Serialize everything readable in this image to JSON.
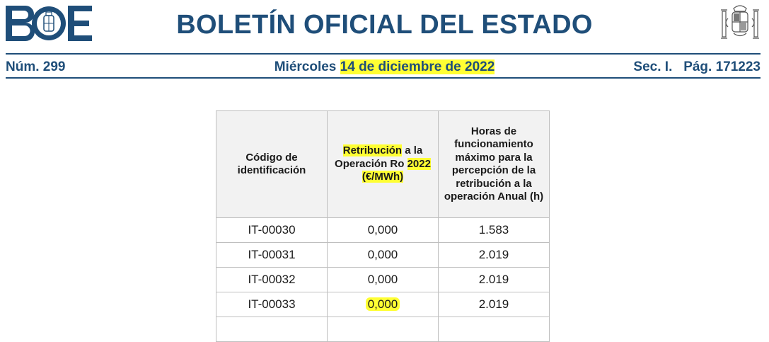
{
  "header": {
    "logo_text": "BOE",
    "title": "BOLETÍN OFICIAL DEL ESTADO",
    "number": "Núm. 299",
    "date_prefix": "Miércoles",
    "date_highlight": "14 de diciembre de 2022",
    "section": "Sec. I.",
    "page": "Pág. 171223"
  },
  "colors": {
    "brand": "#1f4e79",
    "highlight": "#ffff33"
  },
  "table": {
    "headers": {
      "code": "Código de identificación",
      "ret_part1": "Retribución",
      "ret_part2": " a la Operación Ro ",
      "ret_part3": "2022",
      "ret_part4": "(€/MWh)",
      "hours": "Horas de funcionamiento máximo para la percepción de la retribución a la operación Anual (h)"
    },
    "rows": [
      {
        "code": "IT-00030",
        "ret": "0,000",
        "hours": "1.583"
      },
      {
        "code": "IT-00031",
        "ret": "0,000",
        "hours": "2.019"
      },
      {
        "code": "IT-00032",
        "ret": "0,000",
        "hours": "2.019"
      },
      {
        "code": "IT-00033",
        "ret": "0,000",
        "hours": "2.019"
      }
    ]
  }
}
